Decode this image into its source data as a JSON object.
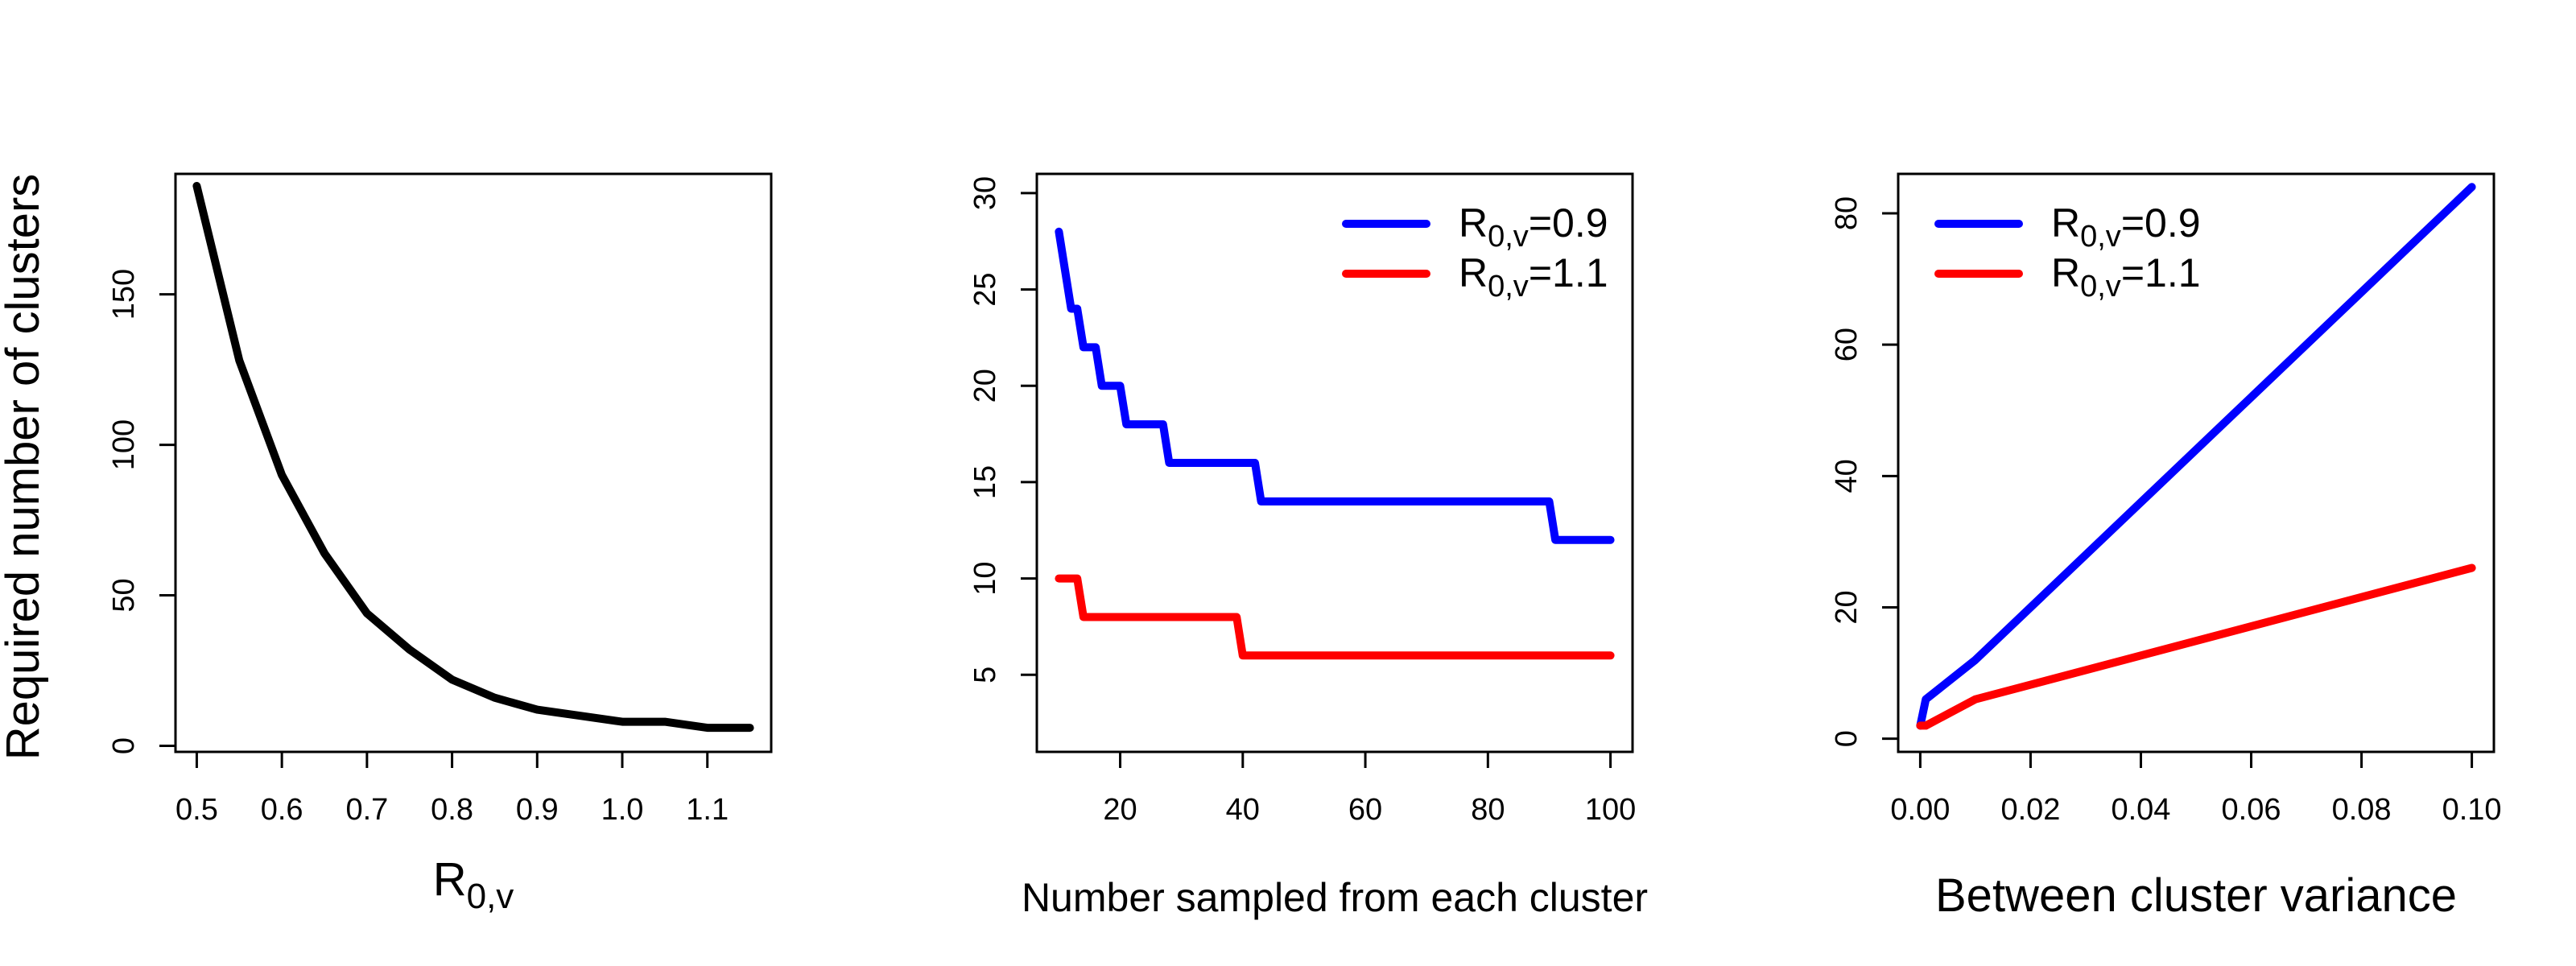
{
  "shared_ylabel": "Required number of clusters",
  "chart_data": [
    {
      "type": "line",
      "xlabel_base": "R",
      "xlabel_sub": "0,v",
      "ylabel": "",
      "xlim": [
        0.475,
        1.175
      ],
      "ylim": [
        -2,
        190
      ],
      "xticks": [
        0.5,
        0.6,
        0.7,
        0.8,
        0.9,
        1.0,
        1.1
      ],
      "xtick_labels": [
        "0.5",
        "0.6",
        "0.7",
        "0.8",
        "0.9",
        "1.0",
        "1.1"
      ],
      "yticks": [
        0,
        50,
        100,
        150
      ],
      "ytick_labels": [
        "0",
        "50",
        "100",
        "150"
      ],
      "grid": false,
      "series": [
        {
          "color": "#000000",
          "x": [
            0.5,
            0.55,
            0.6,
            0.65,
            0.7,
            0.75,
            0.8,
            0.85,
            0.9,
            0.95,
            1.0,
            1.05,
            1.1,
            1.15
          ],
          "y": [
            186,
            128,
            90,
            64,
            44,
            32,
            22,
            16,
            12,
            10,
            8,
            8,
            6,
            6
          ]
        }
      ]
    },
    {
      "type": "line",
      "xlabel": "Number sampled from each cluster",
      "ylabel": "",
      "xlim": [
        6.4,
        103.6
      ],
      "ylim": [
        1,
        31
      ],
      "xticks": [
        20,
        40,
        60,
        80,
        100
      ],
      "xtick_labels": [
        "20",
        "40",
        "60",
        "80",
        "100"
      ],
      "yticks": [
        5,
        10,
        15,
        20,
        25,
        30
      ],
      "ytick_labels": [
        "5",
        "10",
        "15",
        "20",
        "25",
        "30"
      ],
      "grid": false,
      "legend": "top-right",
      "series": [
        {
          "name_base": "R",
          "name_sub": "0,v",
          "name_suffix": "=0.9",
          "color": "#0000ff",
          "x": [
            10,
            11,
            12,
            13,
            14,
            15,
            16,
            17,
            18,
            19,
            20,
            21,
            22,
            23,
            24,
            25,
            26,
            27,
            28,
            29,
            30,
            35,
            40,
            41,
            42,
            43,
            44,
            50,
            60,
            70,
            80,
            89,
            90,
            91,
            92,
            95,
            100
          ],
          "y": [
            28,
            26,
            24,
            24,
            22,
            22,
            22,
            20,
            20,
            20,
            20,
            18,
            18,
            18,
            18,
            18,
            18,
            18,
            16,
            16,
            16,
            16,
            16,
            16,
            16,
            14,
            14,
            14,
            14,
            14,
            14,
            14,
            14,
            12,
            12,
            12,
            12
          ]
        },
        {
          "name_base": "R",
          "name_sub": "0,v",
          "name_suffix": "=1.1",
          "color": "#ff0000",
          "x": [
            10,
            11,
            12,
            13,
            14,
            15,
            20,
            30,
            39,
            40,
            41,
            50,
            60,
            70,
            80,
            90,
            100
          ],
          "y": [
            10,
            10,
            10,
            10,
            8,
            8,
            8,
            8,
            8,
            6,
            6,
            6,
            6,
            6,
            6,
            6,
            6
          ]
        }
      ]
    },
    {
      "type": "line",
      "xlabel": "Between cluster variance",
      "ylabel": "",
      "xlim": [
        -0.004,
        0.104
      ],
      "ylim": [
        -2,
        86
      ],
      "xticks": [
        0.0,
        0.02,
        0.04,
        0.06,
        0.08,
        0.1
      ],
      "xtick_labels": [
        "0.00",
        "0.02",
        "0.04",
        "0.06",
        "0.08",
        "0.10"
      ],
      "yticks": [
        0,
        20,
        40,
        60,
        80
      ],
      "ytick_labels": [
        "0",
        "20",
        "40",
        "60",
        "80"
      ],
      "grid": false,
      "legend": "top-left",
      "series": [
        {
          "name_base": "R",
          "name_sub": "0,v",
          "name_suffix": "=0.9",
          "color": "#0000ff",
          "x": [
            0.0,
            0.001,
            0.01,
            0.1
          ],
          "y": [
            2,
            6,
            12,
            84
          ]
        },
        {
          "name_base": "R",
          "name_sub": "0,v",
          "name_suffix": "=1.1",
          "color": "#ff0000",
          "x": [
            0.0,
            0.001,
            0.01,
            0.1
          ],
          "y": [
            2,
            2,
            6,
            26
          ]
        }
      ]
    }
  ]
}
